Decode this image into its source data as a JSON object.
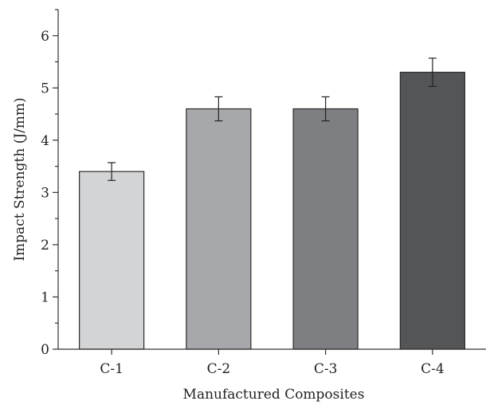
{
  "chart_data": {
    "type": "bar",
    "title": "",
    "xlabel": "Manufactured Composites",
    "ylabel": "Impact Strength (J/mm)",
    "categories": [
      "C-1",
      "C-2",
      "C-3",
      "C-4"
    ],
    "values": [
      3.4,
      4.6,
      4.6,
      5.3
    ],
    "errors": [
      0.17,
      0.23,
      0.23,
      0.27
    ],
    "ylim": [
      0,
      6.5
    ],
    "yticks": [
      0,
      1,
      2,
      3,
      4,
      5,
      6
    ],
    "ytick_labels": [
      "0",
      "1",
      "2",
      "3",
      "4",
      "5",
      "6"
    ],
    "grid": false,
    "colors": [
      "#d3d4d6",
      "#a7a8ab",
      "#7e7f83",
      "#545557"
    ]
  }
}
